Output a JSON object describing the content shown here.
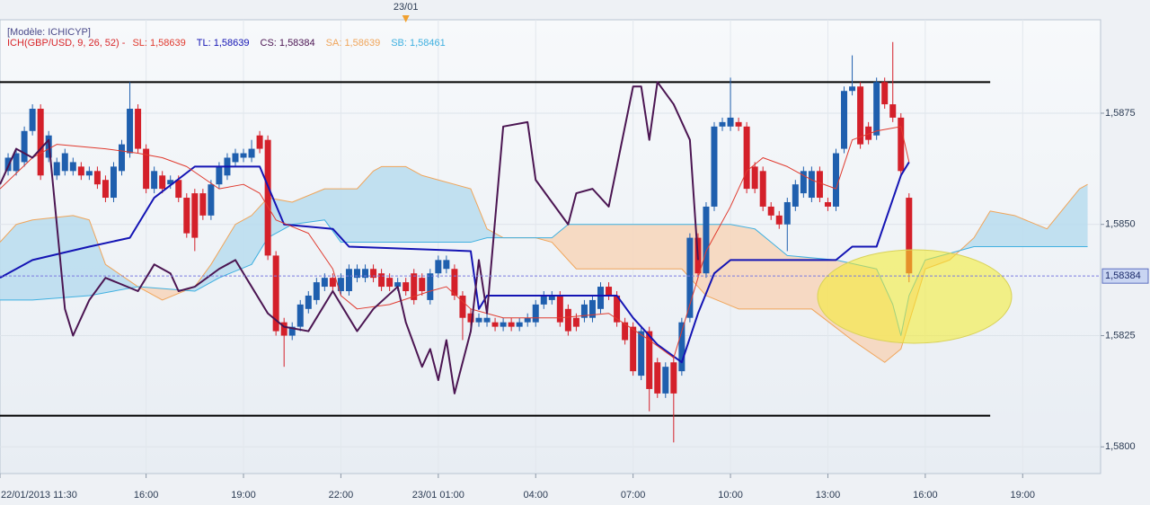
{
  "chart_data": {
    "type": "candlestick",
    "model": "[Modèle: ICHICYP]",
    "indicator": "ICH(GBP/USD, 9, 26, 52) -",
    "indicator_color": "#d8262a",
    "xlim": [
      11.5,
      45.4
    ],
    "ylim": [
      1.5794,
      1.5896
    ],
    "xticks": [
      {
        "value": 11.5,
        "label": "22/01/2013 11:30"
      },
      {
        "value": 16,
        "label": "16:00"
      },
      {
        "value": 19,
        "label": "19:00"
      },
      {
        "value": 22,
        "label": "22:00"
      },
      {
        "value": 25,
        "label": "23/01 01:00"
      },
      {
        "value": 28,
        "label": "04:00"
      },
      {
        "value": 31,
        "label": "07:00"
      },
      {
        "value": 34,
        "label": "10:00"
      },
      {
        "value": 37,
        "label": "13:00"
      },
      {
        "value": 40,
        "label": "16:00"
      },
      {
        "value": 43,
        "label": "19:00"
      }
    ],
    "yticks": [
      {
        "value": 1.58,
        "label": "1,5800"
      },
      {
        "value": 1.5825,
        "label": "1,5825"
      },
      {
        "value": 1.585,
        "label": "1,5850"
      },
      {
        "value": 1.5875,
        "label": "1,5875"
      }
    ],
    "grid": true,
    "event_marker": {
      "value": 24,
      "label": "23/01"
    },
    "last_price": {
      "value": 1.58384,
      "label": "1,58384"
    },
    "up_color": "#1f5fae",
    "down_color": "#d4202a",
    "candles": {
      "x": [
        11.75,
        12,
        12.25,
        12.5,
        12.75,
        13,
        13.25,
        13.5,
        13.75,
        14,
        14.25,
        14.5,
        14.75,
        15,
        15.25,
        15.5,
        15.75,
        16,
        16.25,
        16.5,
        16.75,
        17,
        17.25,
        17.5,
        17.75,
        18,
        18.25,
        18.5,
        18.75,
        19,
        19.25,
        19.5,
        19.75,
        20,
        20.25,
        20.5,
        20.75,
        21,
        21.25,
        21.5,
        21.75,
        22,
        22.25,
        22.5,
        22.75,
        23,
        23.25,
        23.5,
        23.75,
        24,
        24.25,
        24.5,
        24.75,
        25,
        25.25,
        25.5,
        25.75,
        26,
        26.25,
        26.5,
        26.75,
        27,
        27.25,
        27.5,
        27.75,
        28,
        28.25,
        28.5,
        28.75,
        29,
        29.25,
        29.5,
        29.75,
        30,
        30.25,
        30.5,
        30.75,
        31,
        31.25,
        31.5,
        31.75,
        32,
        32.25,
        32.5,
        32.75,
        33,
        33.25,
        33.5,
        33.75,
        34,
        34.25,
        34.5,
        34.75,
        35,
        35.25,
        35.5,
        35.75,
        36,
        36.25,
        36.5,
        36.75,
        37,
        37.25,
        37.5,
        37.75,
        38,
        38.25,
        38.5,
        38.75,
        39,
        39.25,
        39.5
      ],
      "open": [
        1.5862,
        1.5862,
        1.5864,
        1.5871,
        1.5876,
        1.5865,
        1.5861,
        1.5862,
        1.5862,
        1.5863,
        1.5861,
        1.5862,
        1.586,
        1.5856,
        1.5862,
        1.5866,
        1.5876,
        1.5867,
        1.5858,
        1.5861,
        1.5859,
        1.586,
        1.5856,
        1.5857,
        1.5857,
        1.5852,
        1.5859,
        1.5861,
        1.5864,
        1.5865,
        1.5865,
        1.587,
        1.5869,
        1.5843,
        1.5828,
        1.5825,
        1.5827,
        1.5831,
        1.5833,
        1.5836,
        1.5838,
        1.5835,
        1.5835,
        1.5838,
        1.5838,
        1.584,
        1.5839,
        1.5838,
        1.5836,
        1.5837,
        1.5839,
        1.5838,
        1.5833,
        1.5839,
        1.584,
        1.584,
        1.5834,
        1.583,
        1.5828,
        1.5828,
        1.5828,
        1.5827,
        1.5828,
        1.5827,
        1.5828,
        1.5828,
        1.5832,
        1.5833,
        1.5834,
        1.5831,
        1.5829,
        1.5829,
        1.5829,
        1.5831,
        1.5836,
        1.5834,
        1.5828,
        1.5827,
        1.5816,
        1.5826,
        1.5819,
        1.5812,
        1.5819,
        1.5817,
        1.5829,
        1.5847,
        1.5839,
        1.5854,
        1.5872,
        1.5872,
        1.5873,
        1.5872,
        1.5863,
        1.5862,
        1.5854,
        1.5852,
        1.585,
        1.5854,
        1.5857,
        1.5856,
        1.5862,
        1.5855,
        1.5854,
        1.5867,
        1.588,
        1.5881,
        1.5872,
        1.587,
        1.5882,
        1.5877,
        1.5874,
        1.5856
      ],
      "high": [
        1.5866,
        1.5867,
        1.5872,
        1.5877,
        1.5877,
        1.5871,
        1.5865,
        1.5867,
        1.5865,
        1.5864,
        1.5863,
        1.5863,
        1.5861,
        1.5864,
        1.5869,
        1.5882,
        1.5877,
        1.5868,
        1.5863,
        1.5862,
        1.5861,
        1.5861,
        1.5857,
        1.5858,
        1.5858,
        1.586,
        1.5864,
        1.5866,
        1.5867,
        1.5867,
        1.5869,
        1.5871,
        1.587,
        1.5844,
        1.5829,
        1.5828,
        1.5833,
        1.5835,
        1.5838,
        1.5839,
        1.5839,
        1.5839,
        1.5841,
        1.5841,
        1.5841,
        1.5841,
        1.584,
        1.5839,
        1.5838,
        1.5838,
        1.584,
        1.5839,
        1.584,
        1.5843,
        1.5843,
        1.5841,
        1.5835,
        1.5831,
        1.583,
        1.583,
        1.5829,
        1.5829,
        1.5829,
        1.5829,
        1.583,
        1.5833,
        1.5835,
        1.5835,
        1.5835,
        1.5832,
        1.583,
        1.5833,
        1.5834,
        1.5837,
        1.5837,
        1.5835,
        1.5829,
        1.5828,
        1.5827,
        1.5827,
        1.582,
        1.5819,
        1.582,
        1.5829,
        1.5848,
        1.5848,
        1.5855,
        1.5873,
        1.5874,
        1.5883,
        1.5874,
        1.5873,
        1.5864,
        1.5863,
        1.5855,
        1.5853,
        1.5856,
        1.586,
        1.5863,
        1.5863,
        1.5863,
        1.5856,
        1.5867,
        1.5881,
        1.5888,
        1.5882,
        1.5873,
        1.5883,
        1.5883,
        1.5891,
        1.5875,
        1.5857
      ],
      "low": [
        1.5861,
        1.5861,
        1.5863,
        1.587,
        1.586,
        1.5864,
        1.586,
        1.5861,
        1.5861,
        1.586,
        1.586,
        1.5858,
        1.5855,
        1.5855,
        1.5861,
        1.5865,
        1.5866,
        1.5857,
        1.5857,
        1.5857,
        1.5858,
        1.5855,
        1.5847,
        1.5844,
        1.5851,
        1.5851,
        1.5858,
        1.586,
        1.5863,
        1.5864,
        1.5864,
        1.5866,
        1.5842,
        1.5825,
        1.5818,
        1.5824,
        1.5826,
        1.583,
        1.5832,
        1.5835,
        1.5835,
        1.5834,
        1.5834,
        1.5837,
        1.5837,
        1.5837,
        1.5835,
        1.5835,
        1.5835,
        1.5834,
        1.5832,
        1.5834,
        1.5832,
        1.5838,
        1.5839,
        1.5833,
        1.5824,
        1.5827,
        1.5827,
        1.5827,
        1.5826,
        1.5826,
        1.5826,
        1.5826,
        1.5827,
        1.5827,
        1.5831,
        1.5832,
        1.5827,
        1.5825,
        1.5826,
        1.5828,
        1.5828,
        1.583,
        1.5833,
        1.5827,
        1.5823,
        1.5816,
        1.5815,
        1.5808,
        1.5811,
        1.5811,
        1.5801,
        1.5816,
        1.5828,
        1.5838,
        1.5838,
        1.5853,
        1.5871,
        1.5871,
        1.5871,
        1.5857,
        1.5857,
        1.5853,
        1.5851,
        1.5849,
        1.5844,
        1.5853,
        1.5856,
        1.5855,
        1.5855,
        1.5853,
        1.5853,
        1.5866,
        1.5879,
        1.5867,
        1.5868,
        1.5869,
        1.5876,
        1.5873,
        1.5861,
        1.5837
      ],
      "close": [
        1.5865,
        1.5866,
        1.5871,
        1.5876,
        1.5861,
        1.587,
        1.5864,
        1.5866,
        1.5864,
        1.5861,
        1.5862,
        1.5859,
        1.5856,
        1.5863,
        1.5868,
        1.5876,
        1.5867,
        1.5858,
        1.5862,
        1.5858,
        1.586,
        1.5856,
        1.5848,
        1.5847,
        1.5852,
        1.5859,
        1.5863,
        1.5865,
        1.5866,
        1.5866,
        1.5867,
        1.5867,
        1.5843,
        1.5826,
        1.5825,
        1.5827,
        1.5832,
        1.5834,
        1.5837,
        1.5838,
        1.5836,
        1.5838,
        1.584,
        1.584,
        1.584,
        1.5838,
        1.5836,
        1.5836,
        1.5837,
        1.5835,
        1.5833,
        1.5835,
        1.5839,
        1.5842,
        1.5842,
        1.5834,
        1.5829,
        1.5828,
        1.5829,
        1.5829,
        1.5827,
        1.5828,
        1.5827,
        1.5828,
        1.5829,
        1.5832,
        1.5834,
        1.5834,
        1.5828,
        1.5826,
        1.5827,
        1.5832,
        1.5833,
        1.5836,
        1.5834,
        1.5828,
        1.5824,
        1.5817,
        1.5826,
        1.5813,
        1.5812,
        1.5818,
        1.5812,
        1.5828,
        1.5847,
        1.5839,
        1.5854,
        1.5872,
        1.5873,
        1.5874,
        1.5872,
        1.5858,
        1.5858,
        1.5854,
        1.5852,
        1.585,
        1.5855,
        1.5859,
        1.5862,
        1.5862,
        1.5856,
        1.5854,
        1.5866,
        1.588,
        1.5881,
        1.5868,
        1.5869,
        1.5882,
        1.5877,
        1.5874,
        1.5862,
        1.5839
      ]
    },
    "series": [
      {
        "name": "SL: 1,58639",
        "color": "#e03a2e",
        "x": [
          11.5,
          12.5,
          13.25,
          14.75,
          15.75,
          16.5,
          17.25,
          18.25,
          19,
          19.5,
          20,
          21,
          21.75,
          22,
          22.5,
          23.5,
          24.75,
          25.25,
          26,
          27,
          28.75,
          30.25,
          31.5,
          32.25,
          32.75,
          33.25,
          34,
          34.5,
          35,
          35.75,
          36.5,
          37.25,
          37.75,
          38.5,
          39.25,
          39.5
        ],
        "values": [
          1.5858,
          1.5865,
          1.5868,
          1.5867,
          1.5866,
          1.5865,
          1.5863,
          1.5858,
          1.5859,
          1.5857,
          1.5851,
          1.5848,
          1.584,
          1.5834,
          1.5831,
          1.5832,
          1.5835,
          1.5836,
          1.5831,
          1.5829,
          1.5829,
          1.583,
          1.5824,
          1.582,
          1.5832,
          1.5844,
          1.5854,
          1.5862,
          1.5865,
          1.5863,
          1.586,
          1.5858,
          1.5869,
          1.5871,
          1.5872,
          1.5864
        ]
      },
      {
        "name": "TL: 1,58639",
        "color": "#1414b4",
        "x": [
          11.5,
          12.5,
          14.25,
          15.5,
          16.25,
          17.5,
          19.5,
          20.25,
          21.75,
          22.25,
          26,
          26.25,
          26.5,
          30.5,
          31,
          31.75,
          32.5,
          33,
          33.5,
          34,
          37.25,
          37.75,
          38.5,
          39.25,
          39.5
        ],
        "values": [
          1.5838,
          1.5842,
          1.5845,
          1.5847,
          1.5856,
          1.5863,
          1.5863,
          1.585,
          1.5849,
          1.5845,
          1.5844,
          1.5831,
          1.5834,
          1.5834,
          1.5829,
          1.5823,
          1.5819,
          1.583,
          1.5839,
          1.5842,
          1.5842,
          1.5845,
          1.5845,
          1.5861,
          1.5864
        ]
      },
      {
        "name": "CS: 1,58384",
        "color": "#4b1552",
        "x": [
          11.5,
          12,
          12.5,
          13,
          13.5,
          13.75,
          14.25,
          14.75,
          15.75,
          16.25,
          16.75,
          17,
          17.5,
          18.25,
          18.75,
          19.25,
          19.75,
          20.25,
          21,
          21.75,
          22,
          22.5,
          23,
          23.75,
          24,
          24.5,
          24.75,
          25,
          25.25,
          25.5,
          26,
          26.25,
          26.5,
          27,
          27.75,
          28,
          28.5,
          29,
          29.25,
          29.75,
          30.25,
          30.5,
          31,
          31.25,
          31.5,
          31.75,
          32.25,
          32.75,
          33
        ],
        "values": [
          1.5859,
          1.5867,
          1.5865,
          1.5869,
          1.5831,
          1.5825,
          1.5833,
          1.5838,
          1.5835,
          1.5841,
          1.5839,
          1.5835,
          1.5836,
          1.584,
          1.5842,
          1.5836,
          1.583,
          1.5827,
          1.5826,
          1.5835,
          1.5832,
          1.5826,
          1.5831,
          1.5836,
          1.5828,
          1.5818,
          1.5822,
          1.5815,
          1.5824,
          1.5812,
          1.5826,
          1.5842,
          1.583,
          1.5872,
          1.5873,
          1.586,
          1.5855,
          1.585,
          1.5857,
          1.5858,
          1.5854,
          1.5863,
          1.5881,
          1.5881,
          1.5869,
          1.5882,
          1.5877,
          1.5869,
          1.5842
        ]
      },
      {
        "name": "SA: 1,58639",
        "color": "#f0a55a",
        "x": [
          11.5,
          12,
          12.5,
          13.75,
          14.25,
          14.75,
          15.75,
          16.5,
          17.5,
          18,
          18.5,
          18.75,
          19.25,
          19.75,
          20.5,
          21.5,
          22.5,
          23,
          23.25,
          24,
          24.5,
          25,
          26,
          26.5,
          27,
          28,
          28.5,
          29.25,
          31,
          32.5,
          33.25,
          34.25,
          35,
          36.5,
          37.75,
          38.75,
          39.25,
          40,
          40.75,
          41.5,
          42,
          42.75,
          43.75,
          44.75,
          45
        ],
        "values": [
          1.5846,
          1.585,
          1.5851,
          1.5852,
          1.5851,
          1.5841,
          1.5836,
          1.5833,
          1.5836,
          1.5841,
          1.5847,
          1.585,
          1.5852,
          1.5856,
          1.5855,
          1.5858,
          1.5858,
          1.5862,
          1.5863,
          1.5863,
          1.5861,
          1.586,
          1.5858,
          1.5849,
          1.5847,
          1.5847,
          1.5846,
          1.584,
          1.584,
          1.584,
          1.5834,
          1.5831,
          1.5831,
          1.5831,
          1.5824,
          1.5819,
          1.5822,
          1.584,
          1.5842,
          1.5847,
          1.5853,
          1.5852,
          1.5849,
          1.5858,
          1.5859
        ]
      },
      {
        "name": "SB: 1,58461",
        "color": "#3fb0e0",
        "x": [
          11.5,
          12.5,
          14.25,
          15.75,
          17.5,
          18.25,
          19.25,
          19.75,
          20.5,
          21.5,
          22,
          26,
          26.5,
          28.5,
          29,
          32.5,
          34,
          34.75,
          35.25,
          35.75,
          37.25,
          38.5,
          39,
          39.25,
          39.5,
          40,
          41.5,
          45
        ],
        "values": [
          1.5833,
          1.5833,
          1.5834,
          1.5836,
          1.5835,
          1.5838,
          1.5841,
          1.5847,
          1.585,
          1.5851,
          1.5846,
          1.5846,
          1.5847,
          1.5847,
          1.585,
          1.585,
          1.585,
          1.5849,
          1.5846,
          1.5843,
          1.5842,
          1.584,
          1.5832,
          1.5825,
          1.5834,
          1.5842,
          1.5845,
          1.5845
        ]
      }
    ],
    "cloud_colors": [
      "#b9dcef",
      "#f7d5ba"
    ],
    "trend_color": "#000000",
    "trend_lines": [
      {
        "x": [
          11.5,
          42
        ],
        "values": [
          1.5882,
          1.5882
        ]
      },
      {
        "x": [
          11.5,
          42
        ],
        "values": [
          1.5807,
          1.5807
        ]
      }
    ]
  }
}
